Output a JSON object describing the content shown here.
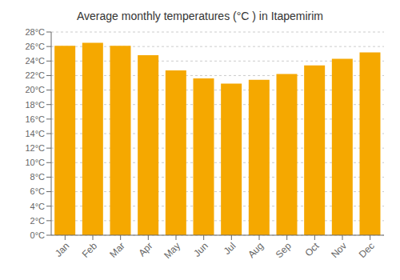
{
  "chart_data": {
    "type": "bar",
    "title": "Average monthly temperatures (°C ) in Itapemirim",
    "categories": [
      "Jan",
      "Feb",
      "Mar",
      "Apr",
      "May",
      "Jun",
      "Jul",
      "Aug",
      "Sep",
      "Oct",
      "Nov",
      "Dec"
    ],
    "values": [
      26.1,
      26.5,
      26.1,
      24.8,
      22.7,
      21.6,
      20.9,
      21.4,
      22.2,
      23.4,
      24.3,
      25.2
    ],
    "color": "#F5A800",
    "ylim": [
      0,
      28
    ],
    "yticks": [
      {
        "value": 0,
        "label": "0°C"
      },
      {
        "value": 2,
        "label": "2°C"
      },
      {
        "value": 4,
        "label": "4°C"
      },
      {
        "value": 6,
        "label": "6°C"
      },
      {
        "value": 8,
        "label": "8°C"
      },
      {
        "value": 10,
        "label": "10°C"
      },
      {
        "value": 12,
        "label": "12°C"
      },
      {
        "value": 14,
        "label": "14°C"
      },
      {
        "value": 16,
        "label": "16°C"
      },
      {
        "value": 18,
        "label": "18°C"
      },
      {
        "value": 20,
        "label": "20°C"
      },
      {
        "value": 22,
        "label": "22°C"
      },
      {
        "value": 24,
        "label": "24°C"
      },
      {
        "value": 26,
        "label": "26°C"
      },
      {
        "value": 28,
        "label": "28°C"
      }
    ],
    "grid": true
  }
}
